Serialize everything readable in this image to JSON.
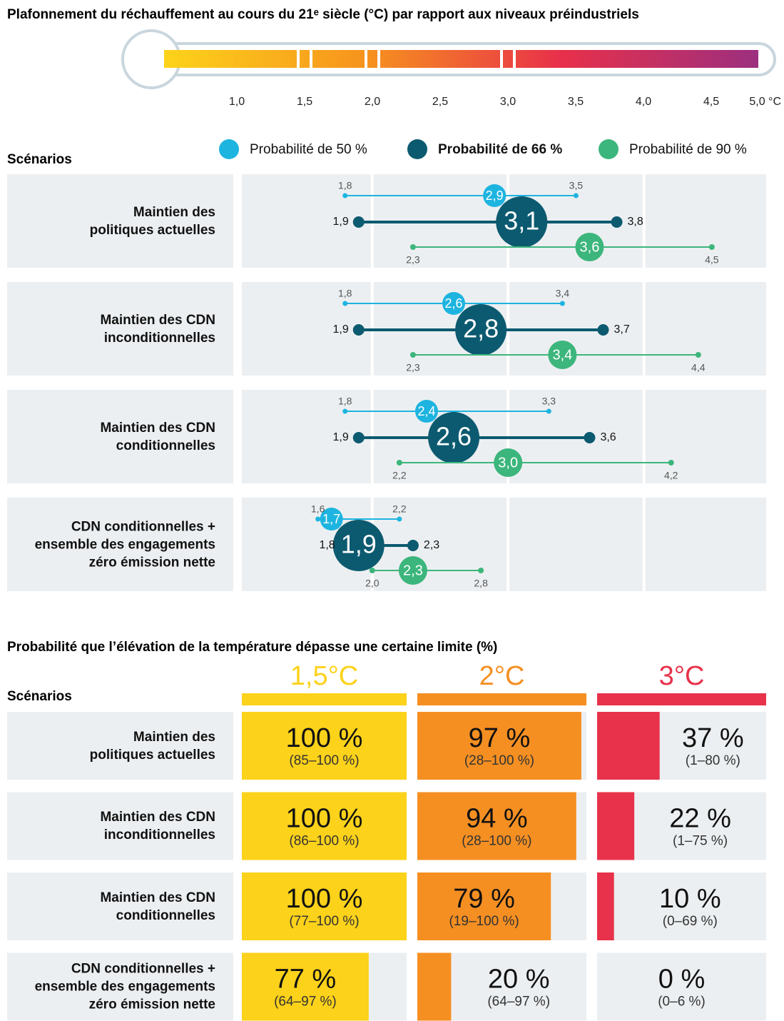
{
  "chart_data": [
    {
      "type": "thermometer",
      "title": "Plafonnement du réchauffement au cours du 21ᵉ siècle (°C) par rapport aux niveaux préindustriels",
      "xlim": [
        0.5,
        5.0
      ],
      "xticks": [
        {
          "value": 1,
          "label": "1,0"
        },
        {
          "value": 1.5,
          "label": "1,5"
        },
        {
          "value": 2,
          "label": "2,0"
        },
        {
          "value": 2.5,
          "label": "2,5"
        },
        {
          "value": 3,
          "label": "3,0"
        },
        {
          "value": 3.5,
          "label": "3,5"
        },
        {
          "value": 4,
          "label": "4,0"
        },
        {
          "value": 4.5,
          "label": "4,5"
        },
        {
          "value": 5,
          "label": "5,0 °C"
        }
      ],
      "markers": [
        1.5,
        2,
        3
      ],
      "colors": [
        "#fdd31a",
        "#f7941d",
        "#e8304a",
        "#9c2f7f"
      ]
    },
    {
      "type": "range",
      "y_label": "Scénarios",
      "categories": [
        "Maintien des\npolitiques actuelles",
        "Maintien des CDN\ninconditionnelles",
        "Maintien des CDN\nconditionnelles",
        "CDN conditionnelles +\nensemble des engagements\nzéro émission nette"
      ],
      "xlim": [
        1.04,
        4.9
      ],
      "xticks": [
        2,
        3,
        4
      ],
      "grid": true,
      "series": [
        {
          "name": "Probabilité de 50 %",
          "color": "#1db4e0",
          "low": [
            1.8,
            1.8,
            1.8,
            1.6
          ],
          "low_labels": [
            "1,8",
            "1,8",
            "1,8",
            "1,6"
          ],
          "values": [
            2.9,
            2.6,
            2.4,
            1.7
          ],
          "value_labels": [
            "2,9",
            "2,6",
            "2,4",
            "1,7"
          ],
          "high": [
            3.5,
            3.4,
            3.3,
            2.2
          ],
          "high_labels": [
            "3,5",
            "3,4",
            "3,3",
            "2,2"
          ]
        },
        {
          "name": "Probabilité de 66 %",
          "color": "#0c5a70",
          "low": [
            1.9,
            1.9,
            1.9,
            1.8
          ],
          "low_labels": [
            "1,9",
            "1,9",
            "1,9",
            "1,8"
          ],
          "values": [
            3.1,
            2.8,
            2.6,
            1.9
          ],
          "value_labels": [
            "3,1",
            "2,8",
            "2,6",
            "1,9"
          ],
          "high": [
            3.8,
            3.7,
            3.6,
            2.3
          ],
          "high_labels": [
            "3,8",
            "3,7",
            "3,6",
            "2,3"
          ]
        },
        {
          "name": "Probabilité de 90 %",
          "color": "#3cb67c",
          "low": [
            2.3,
            2.3,
            2.2,
            2.0
          ],
          "low_labels": [
            "2,3",
            "2,3",
            "2,2",
            "2,0"
          ],
          "values": [
            3.6,
            3.4,
            3.0,
            2.3
          ],
          "value_labels": [
            "3,6",
            "3,4",
            "3,0",
            "2,3"
          ],
          "high": [
            4.5,
            4.4,
            4.2,
            2.8
          ],
          "high_labels": [
            "4,5",
            "4,4",
            "4,2",
            "2,8"
          ]
        }
      ]
    },
    {
      "type": "bar-grid",
      "title": "Probabilité que l’élévation de la température dépasse une certaine limite (%)",
      "y_label": "Scénarios",
      "categories": [
        "Maintien des\npolitiques actuelles",
        "Maintien des CDN\ninconditionnelles",
        "Maintien des CDN\nconditionnelles",
        "CDN conditionnelles +\nensemble des engagements\nzéro émission nette"
      ],
      "xlim": [
        0,
        100
      ],
      "series": [
        {
          "name": "1,5°C",
          "color": "#fcd21a",
          "values": [
            100,
            100,
            100,
            77
          ],
          "value_labels": [
            "100 %",
            "100 %",
            "100 %",
            "77 %"
          ],
          "range_labels": [
            "(85–100 %)",
            "(86–100 %)",
            "(77–100 %)",
            "(64–97 %)"
          ]
        },
        {
          "name": "2°C",
          "color": "#f58f22",
          "values": [
            97,
            94,
            79,
            20
          ],
          "value_labels": [
            "97 %",
            "94 %",
            "79 %",
            "20 %"
          ],
          "range_labels": [
            "(28–100 %)",
            "(28–100 %)",
            "(19–100 %)",
            "(64–97 %)"
          ]
        },
        {
          "name": "3°C",
          "color": "#e8324b",
          "values": [
            37,
            22,
            10,
            0
          ],
          "value_labels": [
            "37 %",
            "22 %",
            "10 %",
            "0 %"
          ],
          "range_labels": [
            "(1–80 %)",
            "(1–75 %)",
            "(0–69 %)",
            "(0–6 %)"
          ]
        }
      ]
    }
  ]
}
